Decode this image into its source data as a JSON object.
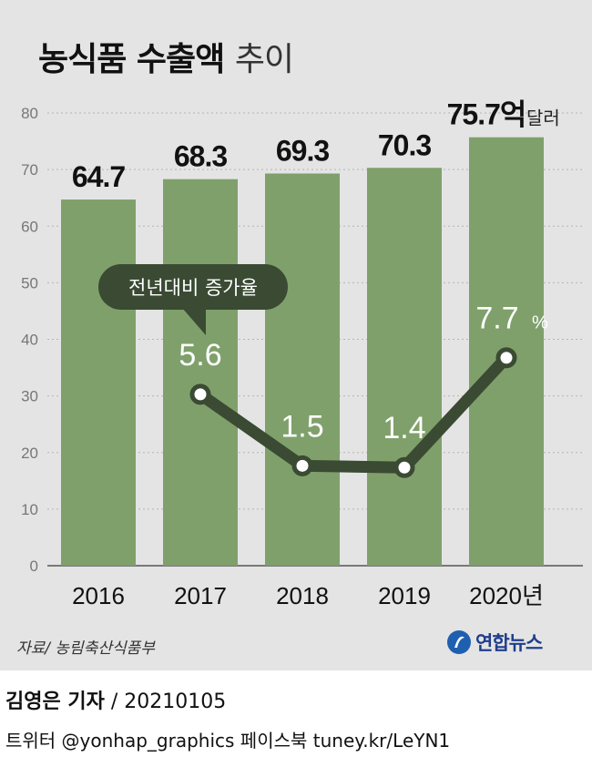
{
  "title": {
    "main": "농식품 수출액",
    "sub": "추이"
  },
  "chart_data": {
    "type": "bar",
    "categories": [
      "2016",
      "2017",
      "2018",
      "2019",
      "2020년"
    ],
    "values": [
      64.7,
      68.3,
      69.3,
      70.3,
      75.7
    ],
    "value_labels": [
      "64.7",
      "68.3",
      "69.3",
      "70.3",
      "75.7억"
    ],
    "value_unit": "달러",
    "ylim": [
      0,
      80
    ],
    "yticks": [
      0,
      10,
      20,
      30,
      40,
      50,
      60,
      70,
      80
    ],
    "grid": true,
    "bar_color": "#7fa06b",
    "growth_line": {
      "label": "전년대비 증가율",
      "categories": [
        "2017",
        "2018",
        "2019",
        "2020년"
      ],
      "values": [
        5.6,
        1.5,
        1.4,
        7.7
      ],
      "value_labels": [
        "5.6",
        "1.5",
        "1.4",
        "7.7"
      ],
      "unit": "%",
      "line_color": "#3a4a33"
    }
  },
  "footer": {
    "source": "자료/ 농림축산식품부",
    "logo_text": "연합뉴스",
    "reporter": "김영은 기자",
    "date": "/ 20210105",
    "social": "트위터 @yonhap_graphics  페이스북 tuney.kr/LeYN1"
  },
  "colors": {
    "background": "#e4e4e4",
    "bar": "#7fa06b",
    "line": "#3a4a33",
    "logo": "#1f3f8c"
  }
}
